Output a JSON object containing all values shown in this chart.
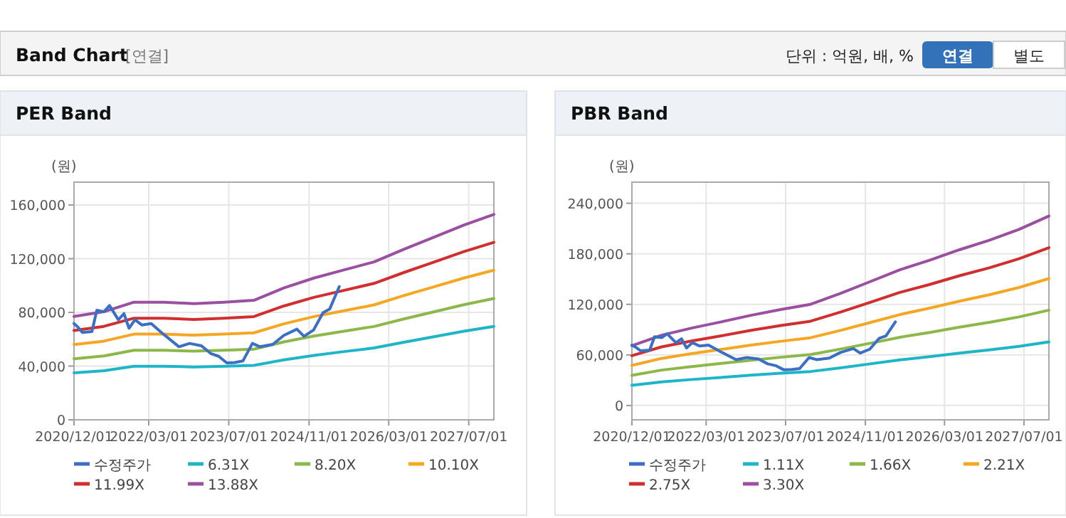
{
  "chart_data": [
    {
      "type": "line",
      "title": "PER Band",
      "ylabel": "(원)",
      "annotations": [
        "Band Chart",
        "[연결]",
        "단위 : 억원, 배, %",
        "연결",
        "별도"
      ],
      "xlim": [
        "2020-12-01",
        "2027-12-01"
      ],
      "xticks": [
        {
          "value": "2020-12-01",
          "label": "2020/12/01"
        },
        {
          "value": "2022-03-01",
          "label": "2022/03/01"
        },
        {
          "value": "2023-07-01",
          "label": "2023/07/01"
        },
        {
          "value": "2024-11-01",
          "label": "2024/11/01"
        },
        {
          "value": "2026-03-01",
          "label": "2026/03/01"
        },
        {
          "value": "2027-07-01",
          "label": "2027/07/01"
        }
      ],
      "ylim": [
        0,
        177000
      ],
      "yticks": [
        0,
        {
          "value": 40000,
          "label": "40,000"
        },
        {
          "value": 80000,
          "label": "80,000"
        },
        {
          "value": 120000,
          "label": "120,000"
        },
        {
          "value": 160000,
          "label": "160,000"
        }
      ],
      "grid": true,
      "legend": "bottom",
      "marker": "none",
      "x": [
        "2020-12-01",
        "2021-06-01",
        "2021-12-01",
        "2022-06-01",
        "2022-12-01",
        "2023-06-01",
        "2023-12-01",
        "2024-06-01",
        "2024-12-01",
        "2025-06-01",
        "2025-12-01",
        "2026-06-01",
        "2026-12-01",
        "2027-06-01",
        "2027-12-01"
      ],
      "series": [
        {
          "name": "수정주가",
          "color": "#3a6fc4",
          "x": [
            "2020-12-01",
            "2020-12-24",
            "2021-01-22",
            "2021-03-20",
            "2021-04-19",
            "2021-06-01",
            "2021-07-05",
            "2021-08-28",
            "2021-10-01",
            "2021-11-01",
            "2021-12-07",
            "2022-01-19",
            "2022-03-16",
            "2022-05-28",
            "2022-09-01",
            "2022-11-04",
            "2023-01-16",
            "2023-03-13",
            "2023-05-01",
            "2023-06-19",
            "2023-08-07",
            "2023-09-25",
            "2023-11-22",
            "2024-01-07",
            "2024-03-25",
            "2024-06-01",
            "2024-08-19",
            "2024-10-01",
            "2024-11-28",
            "2025-01-25",
            "2025-03-07",
            "2025-05-04"
          ],
          "values": [
            71700,
            69200,
            65000,
            65700,
            81600,
            80500,
            85100,
            74500,
            79100,
            68200,
            74500,
            70600,
            71700,
            63900,
            54400,
            56900,
            55100,
            49400,
            47300,
            42400,
            42700,
            43800,
            56900,
            54400,
            56200,
            62900,
            67500,
            62200,
            66800,
            79800,
            82600,
            99200
          ]
        },
        {
          "name": "6.31X",
          "color": "#1fb5c9",
          "values": [
            35000,
            36600,
            39900,
            39900,
            39400,
            39900,
            40500,
            44700,
            48000,
            50800,
            53500,
            57800,
            61900,
            66000,
            69600
          ]
        },
        {
          "name": "8.20X",
          "color": "#8cb84a",
          "values": [
            45500,
            47600,
            51800,
            51800,
            51100,
            51800,
            52600,
            58000,
            62400,
            66000,
            69500,
            75100,
            80400,
            85700,
            90400
          ]
        },
        {
          "name": "10.10X",
          "color": "#f5a623",
          "values": [
            56100,
            58600,
            63800,
            63800,
            63000,
            63800,
            64800,
            71500,
            76900,
            81200,
            85600,
            92500,
            99000,
            105600,
            111400
          ]
        },
        {
          "name": "11.99X",
          "color": "#d12f2f",
          "values": [
            66500,
            69600,
            75700,
            75700,
            74700,
            75700,
            76900,
            84800,
            91200,
            96400,
            101600,
            109700,
            117500,
            125300,
            132200
          ]
        },
        {
          "name": "13.88X",
          "color": "#9b4fa0",
          "values": [
            77000,
            80500,
            87600,
            87600,
            86500,
            87600,
            89000,
            98200,
            105600,
            111600,
            117600,
            127000,
            136000,
            145000,
            153000
          ]
        }
      ]
    },
    {
      "type": "line",
      "title": "PBR Band",
      "ylabel": "(원)",
      "xlim": [
        "2020-12-01",
        "2027-12-01"
      ],
      "xticks": [
        {
          "value": "2020-12-01",
          "label": "2020/12/01"
        },
        {
          "value": "2022-03-01",
          "label": "2022/03/01"
        },
        {
          "value": "2023-07-01",
          "label": "2023/07/01"
        },
        {
          "value": "2024-11-01",
          "label": "2024/11/01"
        },
        {
          "value": "2026-03-01",
          "label": "2026/03/01"
        },
        {
          "value": "2027-07-01",
          "label": "2027/07/01"
        }
      ],
      "ylim": [
        -17000,
        265000
      ],
      "yticks": [
        0,
        {
          "value": 60000,
          "label": "60,000"
        },
        {
          "value": 120000,
          "label": "120,000"
        },
        {
          "value": 180000,
          "label": "180,000"
        },
        {
          "value": 240000,
          "label": "240,000"
        }
      ],
      "grid": true,
      "legend": "bottom",
      "marker": "none",
      "x": [
        "2020-12-01",
        "2021-06-01",
        "2021-12-01",
        "2022-06-01",
        "2022-12-01",
        "2023-06-01",
        "2023-12-01",
        "2024-06-01",
        "2024-12-01",
        "2025-06-01",
        "2025-12-01",
        "2026-06-01",
        "2026-12-01",
        "2027-06-01",
        "2027-12-01"
      ],
      "series": [
        {
          "name": "수정주가",
          "color": "#3a6fc4",
          "x": [
            "2020-12-01",
            "2020-12-24",
            "2021-01-22",
            "2021-03-20",
            "2021-04-19",
            "2021-06-01",
            "2021-07-05",
            "2021-08-28",
            "2021-10-01",
            "2021-11-01",
            "2021-12-07",
            "2022-01-19",
            "2022-03-16",
            "2022-05-28",
            "2022-09-01",
            "2022-11-04",
            "2023-01-16",
            "2023-03-13",
            "2023-05-01",
            "2023-06-19",
            "2023-08-07",
            "2023-09-25",
            "2023-11-22",
            "2024-01-07",
            "2024-03-25",
            "2024-06-01",
            "2024-08-19",
            "2024-10-01",
            "2024-11-28",
            "2025-01-25",
            "2025-03-07",
            "2025-05-04"
          ],
          "values": [
            71700,
            69200,
            65000,
            65700,
            81600,
            80500,
            85100,
            74500,
            79100,
            68200,
            74500,
            70600,
            71700,
            63900,
            54400,
            56900,
            55100,
            49400,
            47300,
            42400,
            42700,
            43800,
            56900,
            54400,
            56200,
            62900,
            67500,
            62200,
            66800,
            79800,
            82600,
            99200
          ]
        },
        {
          "name": "1.11X",
          "color": "#1fb5c9",
          "values": [
            23900,
            28000,
            30800,
            33300,
            36000,
            38200,
            40300,
            44700,
            49400,
            54100,
            57900,
            62100,
            65900,
            70200,
            75500
          ]
        },
        {
          "name": "1.66X",
          "color": "#8cb84a",
          "values": [
            35700,
            42000,
            46200,
            49900,
            53800,
            57200,
            60400,
            66900,
            73900,
            81000,
            86700,
            93000,
            98600,
            105100,
            113100
          ]
        },
        {
          "name": "2.21X",
          "color": "#f5a623",
          "values": [
            47600,
            55900,
            61500,
            66500,
            71700,
            76200,
            80400,
            89100,
            98500,
            107900,
            115500,
            123800,
            131400,
            140000,
            150600
          ]
        },
        {
          "name": "2.75X",
          "color": "#d12f2f",
          "values": [
            59100,
            69500,
            76500,
            82600,
            89100,
            94800,
            100000,
            110800,
            122500,
            134200,
            143600,
            154000,
            163400,
            174100,
            187300
          ]
        },
        {
          "name": "3.30X",
          "color": "#9b4fa0",
          "values": [
            71000,
            83400,
            91800,
            99200,
            107000,
            113800,
            120000,
            133000,
            147000,
            161100,
            172400,
            184800,
            196100,
            209000,
            224800
          ]
        }
      ]
    }
  ]
}
